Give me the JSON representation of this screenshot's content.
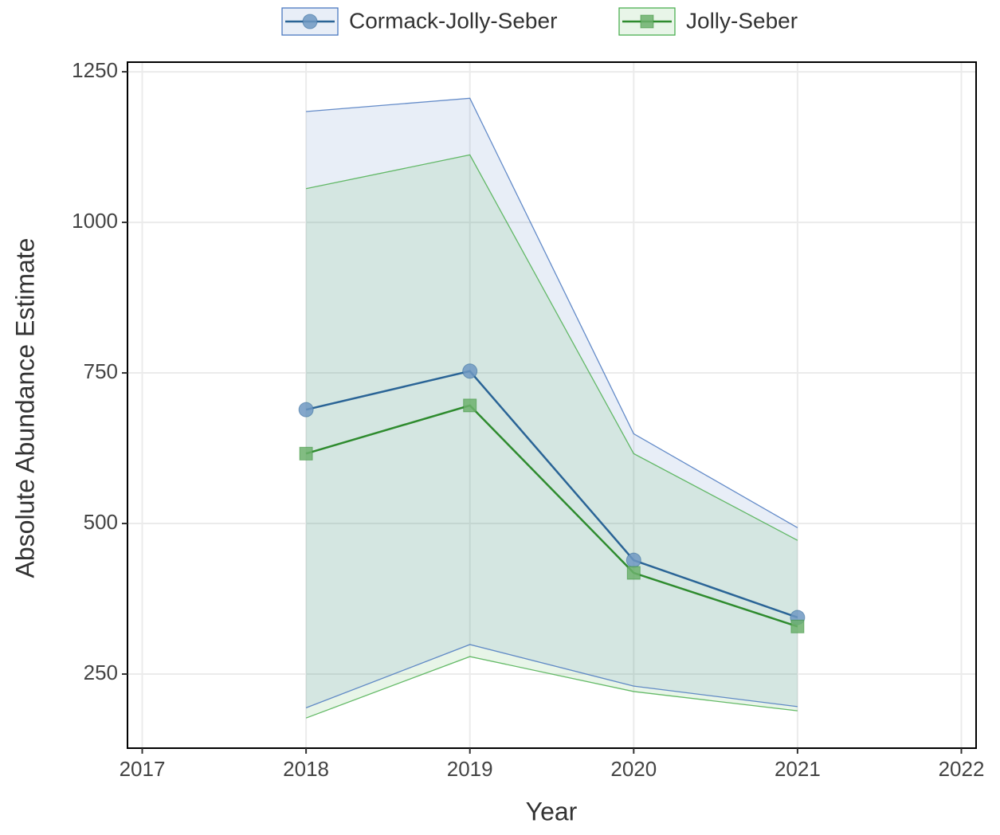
{
  "chart_data": {
    "type": "line",
    "x_label": "Year",
    "y_label": "Absolute Abundance Estimate",
    "x": [
      2018,
      2019,
      2020,
      2021
    ],
    "series": [
      {
        "name": "Cormack-Jolly-Seber",
        "color": "#2a6496",
        "marker": "circle",
        "marker_color": "#6f98c2",
        "band_color": "#4a78c0",
        "values": [
          689,
          753,
          439,
          344
        ],
        "lower": [
          194,
          299,
          230,
          196
        ],
        "upper": [
          1184,
          1206,
          649,
          493
        ]
      },
      {
        "name": "Jolly-Seber",
        "color": "#2e8b2e",
        "marker": "square",
        "marker_color": "#6cb06c",
        "band_color": "#4caf50",
        "values": [
          616,
          696,
          418,
          329
        ],
        "lower": [
          177,
          279,
          221,
          189
        ],
        "upper": [
          1056,
          1112,
          616,
          472
        ]
      }
    ],
    "xlim": [
      2016.91,
      2022.09
    ],
    "xticks": [
      2017,
      2018,
      2019,
      2020,
      2021,
      2022
    ],
    "ylim": [
      127,
      1266
    ],
    "yticks": [
      250,
      500,
      750,
      1000,
      1250
    ],
    "grid": true,
    "legend": "top"
  }
}
